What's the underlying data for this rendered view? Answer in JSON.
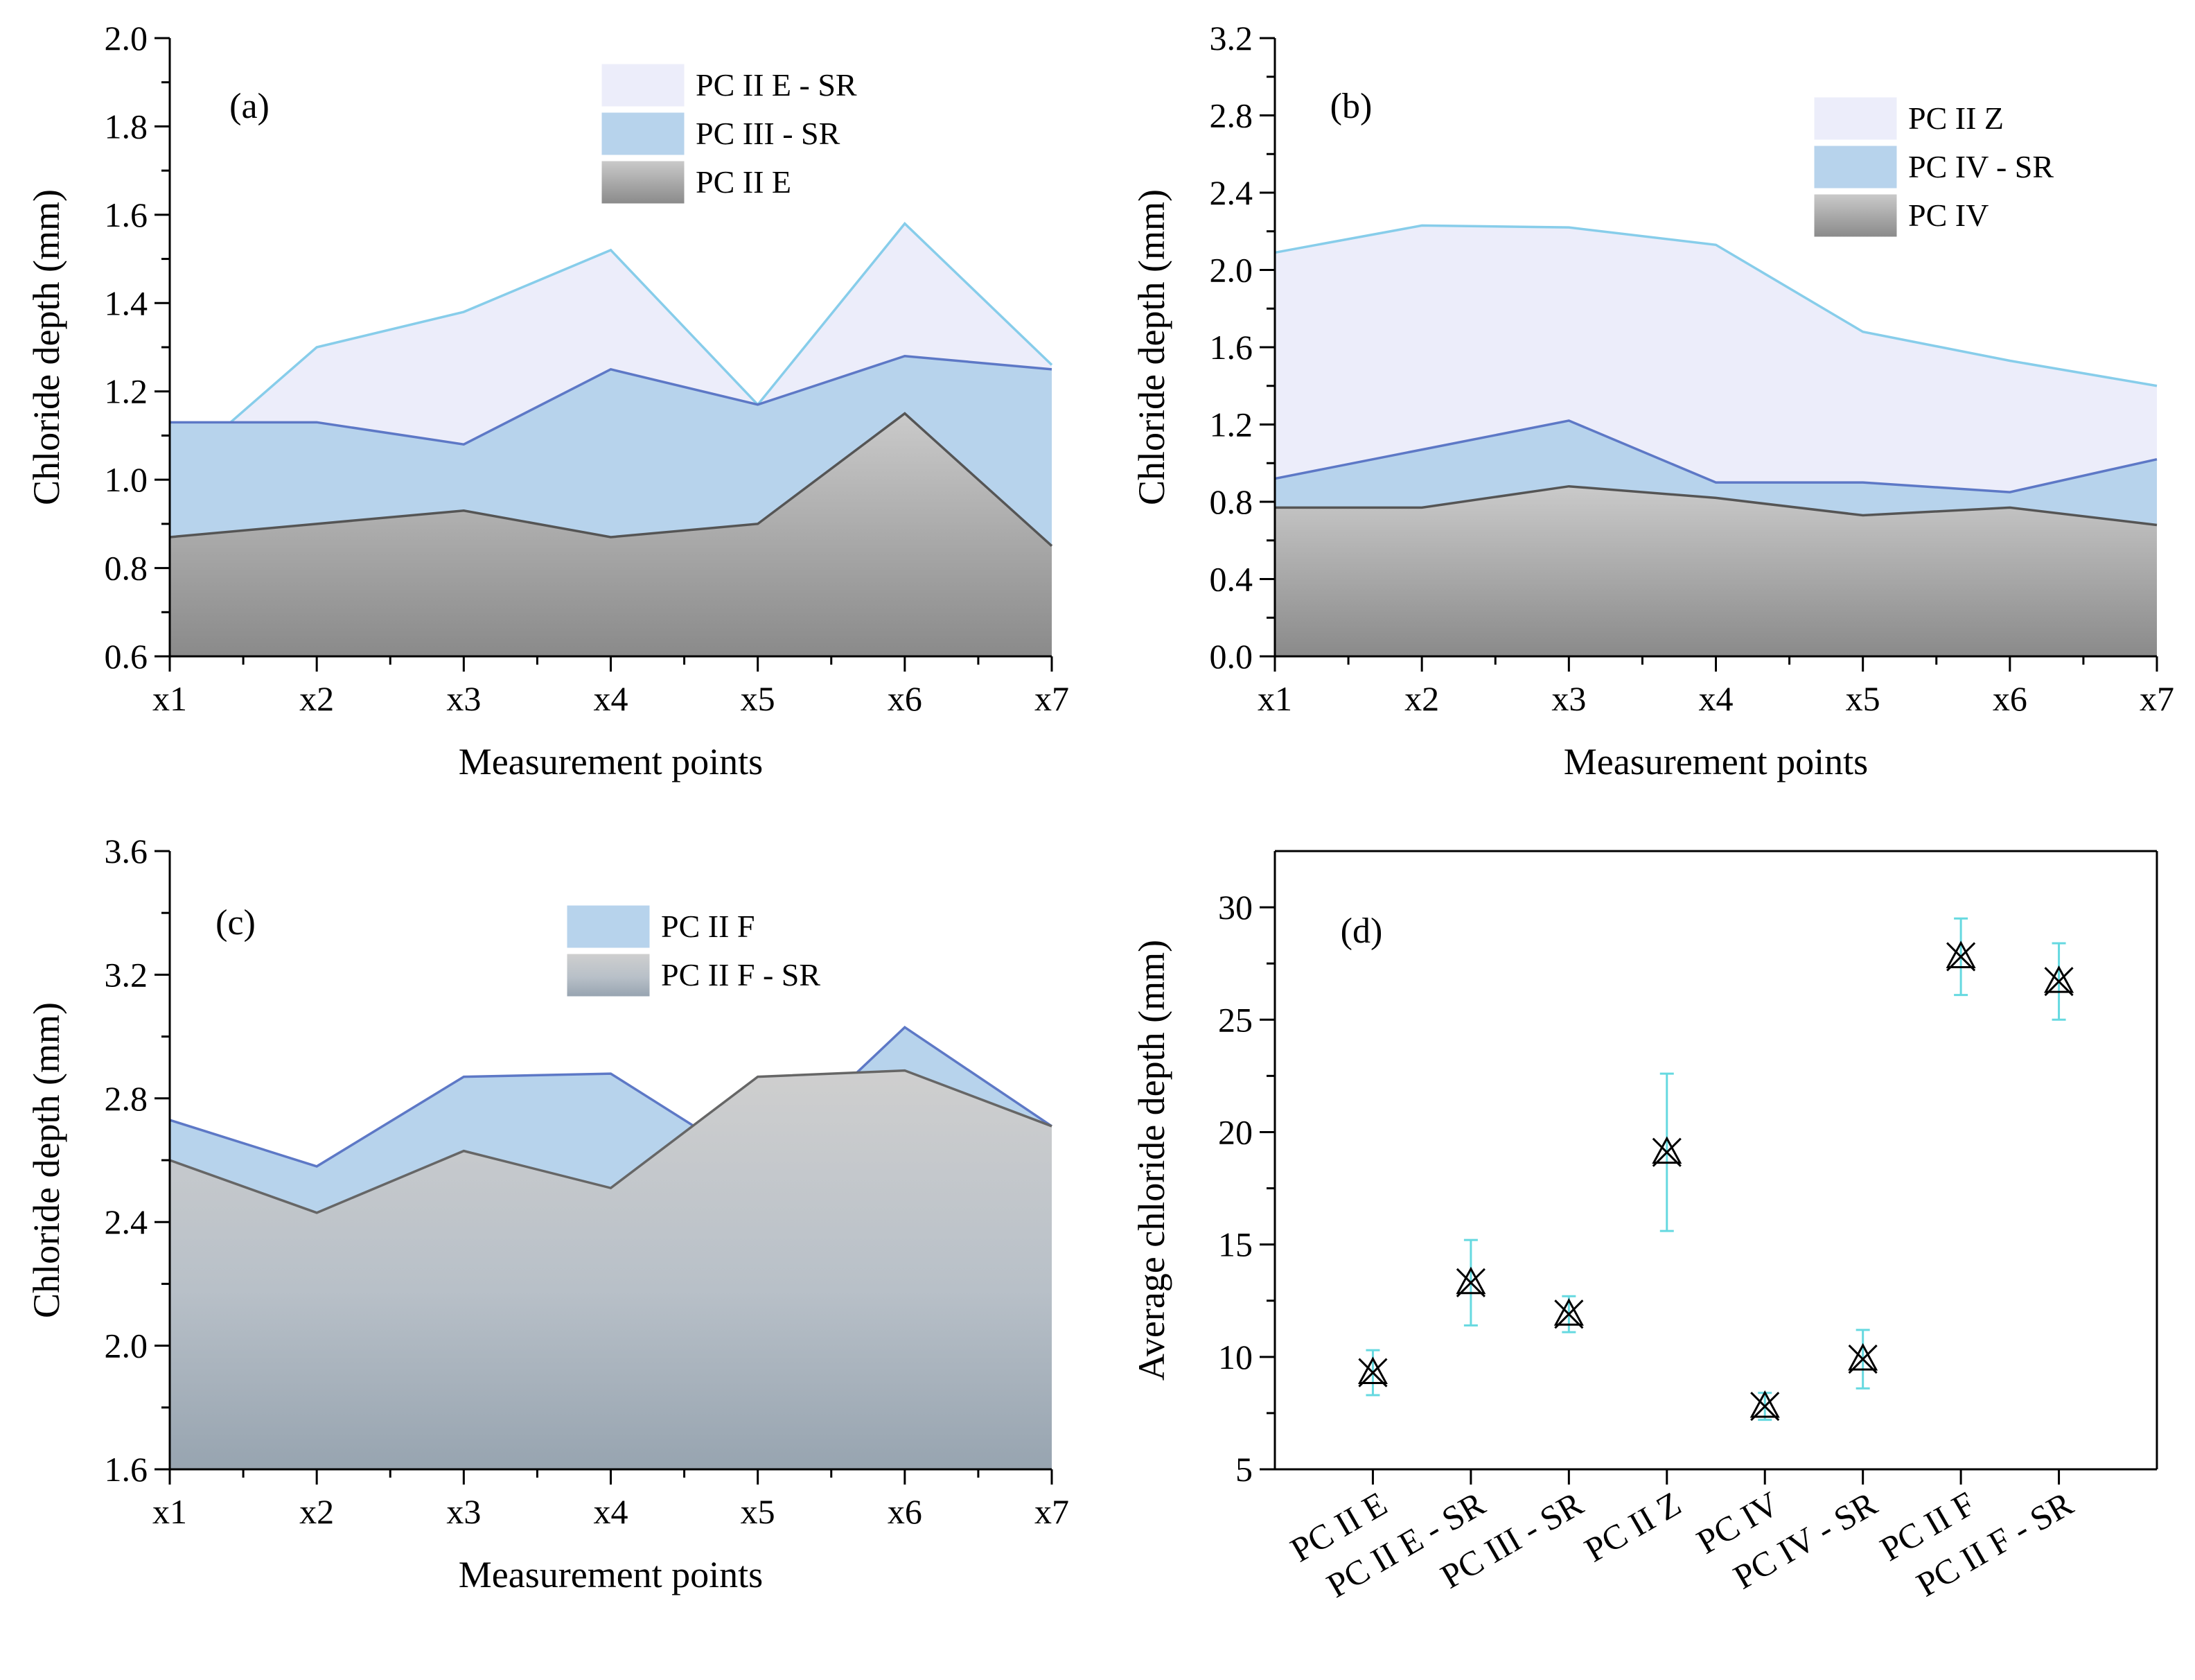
{
  "chart_data": [
    {
      "type": "area",
      "panel_label": "(a)",
      "xlabel": "Measurement points",
      "ylabel": "Chloride depth (mm)",
      "categories": [
        "x1",
        "x2",
        "x3",
        "x4",
        "x5",
        "x6",
        "x7"
      ],
      "ylim": [
        0.6,
        2.0
      ],
      "yticks": [
        0.6,
        0.8,
        1.0,
        1.2,
        1.4,
        1.6,
        1.8,
        2.0
      ],
      "ytick_labels": [
        "0.6",
        "0.8",
        "1.0",
        "1.2",
        "1.4",
        "1.6",
        "1.8",
        "2.0"
      ],
      "legend_position": "top-center",
      "series": [
        {
          "name": "PC II E - SR",
          "values": [
            1.01,
            1.3,
            1.38,
            1.52,
            1.17,
            1.58,
            1.26
          ],
          "fill": "#ecedfa",
          "line": "#87cdea"
        },
        {
          "name": "PC III - SR",
          "values": [
            1.13,
            1.13,
            1.08,
            1.25,
            1.17,
            1.28,
            1.25
          ],
          "fill": "#b7d3ec",
          "line": "#5d78c6"
        },
        {
          "name": "PC II E",
          "values": [
            0.87,
            0.9,
            0.93,
            0.87,
            0.9,
            1.15,
            0.85
          ],
          "fill": "gray",
          "line": "#555555"
        }
      ]
    },
    {
      "type": "area",
      "panel_label": "(b)",
      "xlabel": "Measurement points",
      "ylabel": "Chloride depth (mm)",
      "categories": [
        "x1",
        "x2",
        "x3",
        "x4",
        "x5",
        "x6",
        "x7"
      ],
      "ylim": [
        0.0,
        3.2
      ],
      "yticks": [
        0.0,
        0.4,
        0.8,
        1.2,
        1.6,
        2.0,
        2.4,
        2.8,
        3.2
      ],
      "ytick_labels": [
        "0.0",
        "0.4",
        "0.8",
        "1.2",
        "1.6",
        "2.0",
        "2.4",
        "2.8",
        "3.2"
      ],
      "legend_position": "top-right",
      "series": [
        {
          "name": "PC II Z",
          "values": [
            2.09,
            2.23,
            2.22,
            2.13,
            1.68,
            1.53,
            1.4
          ],
          "fill": "#ecedfa",
          "line": "#87cdea"
        },
        {
          "name": "PC IV - SR",
          "values": [
            0.92,
            1.07,
            1.22,
            0.9,
            0.9,
            0.85,
            1.02
          ],
          "fill": "#b7d3ec",
          "line": "#5d78c6"
        },
        {
          "name": "PC IV",
          "values": [
            0.77,
            0.77,
            0.88,
            0.82,
            0.73,
            0.77,
            0.68
          ],
          "fill": "gray",
          "line": "#555555"
        }
      ]
    },
    {
      "type": "area",
      "panel_label": "(c)",
      "xlabel": "Measurement points",
      "ylabel": "Chloride depth (mm)",
      "categories": [
        "x1",
        "x2",
        "x3",
        "x4",
        "x5",
        "x6",
        "x7"
      ],
      "ylim": [
        1.6,
        3.6
      ],
      "yticks": [
        1.6,
        2.0,
        2.4,
        2.8,
        3.2,
        3.6
      ],
      "ytick_labels": [
        "1.6",
        "2.0",
        "2.4",
        "2.8",
        "3.2",
        "3.6"
      ],
      "legend_position": "top-center",
      "series": [
        {
          "name": "PC II F",
          "values": [
            2.73,
            2.58,
            2.87,
            2.88,
            2.58,
            3.03,
            2.71
          ],
          "fill": "#b7d3ec",
          "line": "#5d78c6"
        },
        {
          "name": "PC II F - SR",
          "values": [
            2.6,
            2.43,
            2.63,
            2.51,
            2.87,
            2.89,
            2.71
          ],
          "fill": "grayblue",
          "line": "#666666"
        }
      ]
    },
    {
      "type": "scatter",
      "panel_label": "(d)",
      "ylabel": "Average chloride depth (mm)",
      "categories": [
        "PC II E",
        "PC II E - SR",
        "PC III - SR",
        "PC II Z",
        "PC IV",
        "PC IV - SR",
        "PC II F",
        "PC II F - SR"
      ],
      "ylim": [
        5,
        32.5
      ],
      "yticks": [
        5,
        10,
        15,
        20,
        25,
        30
      ],
      "ytick_labels": [
        "5",
        "10",
        "15",
        "20",
        "25",
        "30"
      ],
      "values": [
        9.3,
        13.3,
        11.9,
        19.1,
        7.8,
        9.9,
        27.8,
        26.7
      ],
      "errors": [
        1.0,
        1.9,
        0.8,
        3.5,
        0.6,
        1.3,
        1.7,
        1.7
      ],
      "marker_color": "#000000",
      "error_color": "#66d9e0"
    }
  ]
}
